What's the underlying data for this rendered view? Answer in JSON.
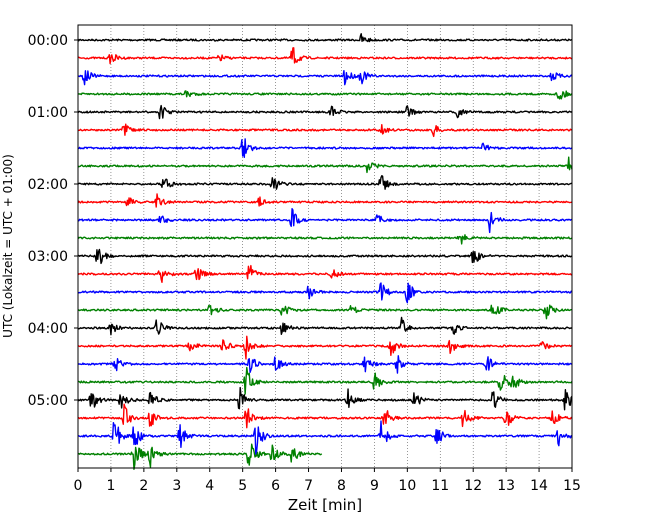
{
  "chart_data": {
    "type": "line",
    "title": "",
    "xlabel": "Zeit  [min]",
    "ylabel": "UTC (Lokalzeit = UTC + 01:00)",
    "xlim": [
      0,
      15
    ],
    "x_ticks": [
      "0",
      "1",
      "2",
      "3",
      "4",
      "5",
      "6",
      "7",
      "8",
      "9",
      "10",
      "11",
      "12",
      "13",
      "14",
      "15"
    ],
    "y_tick_labels": [
      "00:00",
      "01:00",
      "02:00",
      "03:00",
      "04:00",
      "05:00"
    ],
    "grid": "vertical dotted at each minute",
    "legend": "none",
    "trace_interval_minutes": 15,
    "trace_color_cycle": [
      "#000000",
      "#ff0000",
      "#0000ff",
      "#008000"
    ],
    "traces": [
      {
        "start": "00:00",
        "length_min": 15,
        "events": [
          [
            8.6,
            6
          ]
        ]
      },
      {
        "start": "00:15",
        "length_min": 15,
        "events": [
          [
            1.0,
            7
          ],
          [
            4.3,
            4
          ],
          [
            6.5,
            14
          ]
        ]
      },
      {
        "start": "00:30",
        "length_min": 15,
        "events": [
          [
            0.2,
            10
          ],
          [
            8.1,
            10
          ],
          [
            8.6,
            8
          ],
          [
            14.4,
            6
          ]
        ]
      },
      {
        "start": "00:45",
        "length_min": 15,
        "events": [
          [
            3.3,
            6
          ],
          [
            14.6,
            10
          ]
        ]
      },
      {
        "start": "01:00",
        "length_min": 15,
        "events": [
          [
            2.5,
            9
          ],
          [
            7.7,
            6
          ],
          [
            10.0,
            7
          ],
          [
            11.5,
            6
          ]
        ]
      },
      {
        "start": "01:15",
        "length_min": 15,
        "events": [
          [
            1.4,
            7
          ],
          [
            9.2,
            6
          ],
          [
            10.8,
            6
          ]
        ]
      },
      {
        "start": "01:30",
        "length_min": 15,
        "events": [
          [
            5.0,
            14
          ],
          [
            12.3,
            5
          ]
        ]
      },
      {
        "start": "01:45",
        "length_min": 15,
        "events": [
          [
            8.8,
            9
          ],
          [
            14.9,
            8
          ]
        ]
      },
      {
        "start": "02:00",
        "length_min": 15,
        "events": [
          [
            2.6,
            9
          ],
          [
            5.9,
            11
          ],
          [
            9.2,
            12
          ]
        ]
      },
      {
        "start": "02:15",
        "length_min": 15,
        "events": [
          [
            1.5,
            6
          ],
          [
            2.4,
            8
          ],
          [
            5.5,
            5
          ]
        ]
      },
      {
        "start": "02:30",
        "length_min": 15,
        "events": [
          [
            2.5,
            7
          ],
          [
            6.5,
            11
          ],
          [
            9.1,
            6
          ],
          [
            12.5,
            13
          ]
        ]
      },
      {
        "start": "02:45",
        "length_min": 15,
        "events": [
          [
            11.6,
            9
          ]
        ]
      },
      {
        "start": "03:00",
        "length_min": 15,
        "events": [
          [
            0.6,
            14
          ],
          [
            12.0,
            11
          ]
        ]
      },
      {
        "start": "03:15",
        "length_min": 15,
        "events": [
          [
            2.5,
            12
          ],
          [
            3.6,
            11
          ],
          [
            5.2,
            13
          ],
          [
            7.7,
            6
          ]
        ]
      },
      {
        "start": "03:30",
        "length_min": 15,
        "events": [
          [
            7.0,
            8
          ],
          [
            9.2,
            11
          ],
          [
            10.0,
            12
          ]
        ]
      },
      {
        "start": "03:45",
        "length_min": 15,
        "events": [
          [
            4.0,
            8
          ],
          [
            6.2,
            8
          ],
          [
            8.3,
            6
          ],
          [
            12.6,
            11
          ],
          [
            14.2,
            10
          ]
        ]
      },
      {
        "start": "04:00",
        "length_min": 15,
        "events": [
          [
            1.0,
            8
          ],
          [
            2.4,
            12
          ],
          [
            6.2,
            9
          ],
          [
            9.8,
            12
          ],
          [
            11.4,
            7
          ]
        ]
      },
      {
        "start": "04:15",
        "length_min": 15,
        "events": [
          [
            3.4,
            8
          ],
          [
            4.4,
            9
          ],
          [
            5.1,
            14
          ],
          [
            9.5,
            11
          ],
          [
            11.3,
            9
          ],
          [
            14.1,
            6
          ]
        ]
      },
      {
        "start": "04:30",
        "length_min": 15,
        "events": [
          [
            1.1,
            10
          ],
          [
            5.2,
            12
          ],
          [
            6.0,
            9
          ],
          [
            8.7,
            10
          ],
          [
            9.7,
            9
          ],
          [
            12.4,
            10
          ]
        ]
      },
      {
        "start": "04:45",
        "length_min": 15,
        "events": [
          [
            5.1,
            18
          ],
          [
            9.0,
            10
          ],
          [
            12.8,
            16
          ],
          [
            13.2,
            9
          ]
        ]
      },
      {
        "start": "05:00",
        "length_min": 15,
        "events": [
          [
            0.4,
            14
          ],
          [
            1.3,
            13
          ],
          [
            2.2,
            10
          ],
          [
            4.9,
            14
          ],
          [
            8.2,
            11
          ],
          [
            10.2,
            10
          ],
          [
            12.6,
            11
          ],
          [
            14.8,
            14
          ]
        ]
      },
      {
        "start": "05:15",
        "length_min": 15,
        "events": [
          [
            1.4,
            14
          ],
          [
            2.2,
            12
          ],
          [
            5.1,
            15
          ],
          [
            9.3,
            13
          ],
          [
            11.7,
            11
          ],
          [
            13.0,
            12
          ],
          [
            14.4,
            10
          ]
        ]
      },
      {
        "start": "05:30",
        "length_min": 15,
        "events": [
          [
            1.1,
            20
          ],
          [
            1.7,
            16
          ],
          [
            3.1,
            15
          ],
          [
            5.4,
            20
          ],
          [
            9.2,
            16
          ],
          [
            10.9,
            11
          ],
          [
            14.6,
            12
          ]
        ]
      },
      {
        "start": "05:45",
        "length_min": 7.4,
        "events": [
          [
            1.7,
            22
          ],
          [
            2.2,
            14
          ],
          [
            5.2,
            22
          ],
          [
            5.9,
            12
          ],
          [
            6.5,
            10
          ]
        ]
      }
    ]
  }
}
